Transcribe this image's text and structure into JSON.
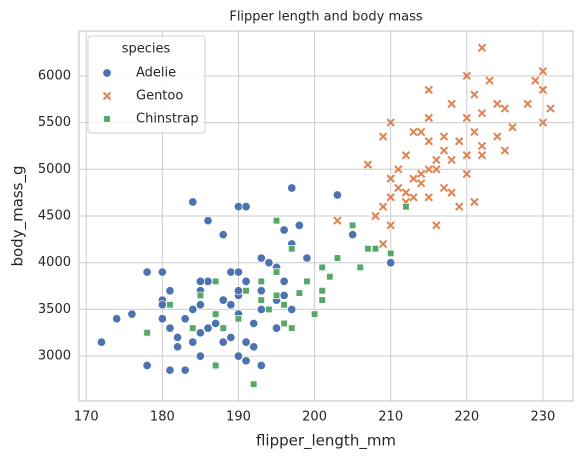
{
  "chart_data": {
    "type": "scatter",
    "title": "Flipper length and body mass",
    "x_label": "flipper_length_mm",
    "y_label": "body_mass_g",
    "xlim": [
      169.05,
      233.95
    ],
    "ylim": [
      2520,
      6480
    ],
    "xticks": [
      170,
      180,
      190,
      200,
      210,
      220,
      230
    ],
    "yticks": [
      3000,
      3500,
      4000,
      4500,
      5000,
      5500,
      6000
    ],
    "grid": true,
    "legend_title": "species",
    "legend_position": "upper left",
    "series": [
      {
        "name": "Adelie",
        "color": "#4c72b0",
        "marker": "circle",
        "x": [
          172,
          174,
          176,
          178,
          178,
          178,
          180,
          180,
          180,
          180,
          181,
          181,
          181,
          182,
          182,
          183,
          183,
          184,
          184,
          184,
          185,
          185,
          185,
          185,
          186,
          186,
          186,
          187,
          187,
          187,
          188,
          188,
          188,
          189,
          189,
          189,
          190,
          190,
          190,
          190,
          190,
          191,
          191,
          191,
          191,
          192,
          192,
          193,
          193,
          193,
          194,
          195,
          195,
          195,
          196,
          196,
          196,
          197,
          197,
          197,
          198,
          199,
          203,
          205,
          210,
          190,
          185,
          195,
          193,
          188
        ],
        "values": [
          3150,
          3400,
          3450,
          3900,
          3250,
          2900,
          3600,
          3550,
          3900,
          3400,
          3300,
          2850,
          3700,
          3200,
          3100,
          2850,
          3400,
          3500,
          4650,
          3150,
          3700,
          3550,
          3000,
          3250,
          4450,
          3300,
          3800,
          3450,
          3350,
          2900,
          3600,
          3300,
          3150,
          3200,
          3550,
          3900,
          3450,
          4600,
          3000,
          3900,
          3650,
          4600,
          3800,
          2950,
          3150,
          3350,
          3100,
          3700,
          4050,
          3500,
          4000,
          3600,
          4450,
          3950,
          4350,
          3800,
          3650,
          4200,
          3500,
          4800,
          4400,
          4050,
          4725,
          4300,
          4000,
          3700,
          3800,
          3300,
          2900,
          4300
        ]
      },
      {
        "name": "Gentoo",
        "color": "#dd8452",
        "marker": "x",
        "x": [
          203,
          207,
          208,
          209,
          209,
          210,
          210,
          210,
          211,
          211,
          212,
          212,
          212,
          213,
          213,
          213,
          214,
          214,
          214,
          215,
          215,
          215,
          215,
          216,
          216,
          216,
          217,
          217,
          217,
          218,
          218,
          218,
          219,
          219,
          220,
          220,
          220,
          220,
          221,
          221,
          221,
          222,
          222,
          222,
          223,
          224,
          224,
          225,
          225,
          226,
          228,
          229,
          230,
          230,
          230,
          231,
          209,
          210,
          215,
          222
        ],
        "values": [
          4450,
          5050,
          4500,
          4600,
          5350,
          4400,
          4900,
          5500,
          4800,
          5000,
          4650,
          5150,
          4750,
          4700,
          5400,
          4900,
          4850,
          5400,
          4950,
          5850,
          5000,
          5550,
          4700,
          5100,
          4400,
          5000,
          5200,
          4800,
          5350,
          5700,
          5100,
          4750,
          5300,
          4600,
          6000,
          5550,
          5150,
          4950,
          5800,
          5400,
          4650,
          6300,
          5600,
          5250,
          5950,
          5350,
          5700,
          5200,
          5650,
          5450,
          5700,
          5950,
          6050,
          5500,
          5850,
          5650,
          4200,
          4700,
          5300,
          5150
        ]
      },
      {
        "name": "Chinstrap",
        "color": "#55a868",
        "marker": "square",
        "x": [
          178,
          181,
          184,
          185,
          187,
          187,
          188,
          190,
          191,
          192,
          193,
          194,
          195,
          195,
          196,
          197,
          197,
          198,
          199,
          200,
          201,
          201,
          201,
          202,
          203,
          205,
          206,
          207,
          208,
          210,
          212,
          196,
          195,
          193,
          187
        ],
        "values": [
          3250,
          3550,
          3300,
          3650,
          2900,
          3800,
          3300,
          3400,
          3700,
          2700,
          3600,
          3500,
          3900,
          3650,
          3550,
          4150,
          3300,
          3675,
          3800,
          3450,
          3700,
          3950,
          3600,
          3850,
          4050,
          4400,
          3950,
          4150,
          4150,
          4100,
          4600,
          3350,
          4450,
          3800,
          3450
        ]
      }
    ]
  }
}
